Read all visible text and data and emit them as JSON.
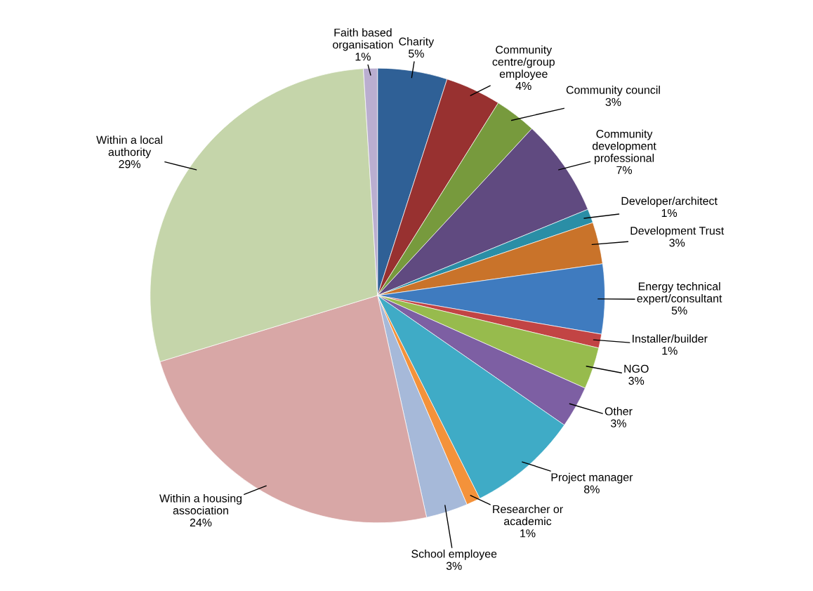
{
  "chart_data": {
    "type": "pie",
    "categories": [
      "Charity",
      "Community\ncentre/group\nemployee",
      "Community council",
      "Community\ndevelopment\nprofessional",
      "Developer/architect",
      "Development Trust",
      "Energy technical\nexpert/consultant",
      "Installer/builder",
      "NGO",
      "Other",
      "Project manager",
      "Researcher or\nacademic",
      "School employee",
      "Within a housing\nassociation",
      "Within a local\nauthority",
      "Faith based\norganisation"
    ],
    "values": [
      5,
      4,
      3,
      7,
      1,
      3,
      5,
      1,
      3,
      3,
      8,
      1,
      3,
      24,
      29,
      1
    ],
    "value_labels": [
      "5%",
      "4%",
      "3%",
      "7%",
      "1%",
      "3%",
      "5%",
      "1%",
      "3%",
      "3%",
      "8%",
      "1%",
      "3%",
      "24%",
      "29%",
      "1%"
    ],
    "colors": [
      "#2f6096",
      "#983130",
      "#779a3d",
      "#604a80",
      "#2a8ea6",
      "#c9732a",
      "#3f7bbf",
      "#c24444",
      "#97bb4d",
      "#7d5fa3",
      "#3fabc6",
      "#f4923a",
      "#a6b9d9",
      "#d8a7a6",
      "#c5d5aa",
      "#baaed0"
    ],
    "legend": false
  }
}
